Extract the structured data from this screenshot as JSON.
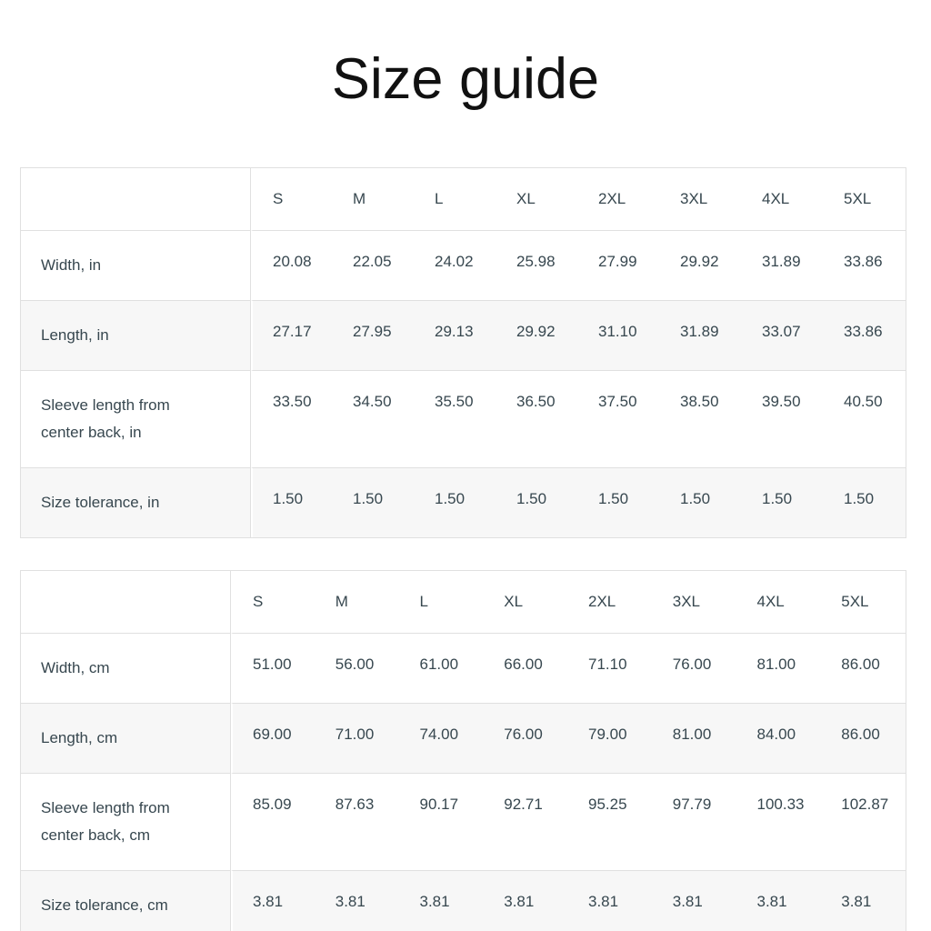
{
  "page": {
    "title": "Size guide"
  },
  "colors": {
    "text": "#37474f",
    "title": "#111111",
    "border": "#e0e0e0",
    "alt_row_background": "#f7f7f7",
    "background": "#ffffff"
  },
  "tables": [
    {
      "name": "size-table-inches",
      "unit": "in",
      "columns": [
        "S",
        "M",
        "L",
        "XL",
        "2XL",
        "3XL",
        "4XL",
        "5XL"
      ],
      "rows": [
        {
          "label": "Width, in",
          "values": [
            "20.08",
            "22.05",
            "24.02",
            "25.98",
            "27.99",
            "29.92",
            "31.89",
            "33.86"
          ]
        },
        {
          "label": "Length, in",
          "values": [
            "27.17",
            "27.95",
            "29.13",
            "29.92",
            "31.10",
            "31.89",
            "33.07",
            "33.86"
          ]
        },
        {
          "label": "Sleeve length from center back, in",
          "values": [
            "33.50",
            "34.50",
            "35.50",
            "36.50",
            "37.50",
            "38.50",
            "39.50",
            "40.50"
          ]
        },
        {
          "label": "Size tolerance, in",
          "values": [
            "1.50",
            "1.50",
            "1.50",
            "1.50",
            "1.50",
            "1.50",
            "1.50",
            "1.50"
          ]
        }
      ]
    },
    {
      "name": "size-table-cm",
      "unit": "cm",
      "columns": [
        "S",
        "M",
        "L",
        "XL",
        "2XL",
        "3XL",
        "4XL",
        "5XL"
      ],
      "rows": [
        {
          "label": "Width, cm",
          "values": [
            "51.00",
            "56.00",
            "61.00",
            "66.00",
            "71.10",
            "76.00",
            "81.00",
            "86.00"
          ]
        },
        {
          "label": "Length, cm",
          "values": [
            "69.00",
            "71.00",
            "74.00",
            "76.00",
            "79.00",
            "81.00",
            "84.00",
            "86.00"
          ]
        },
        {
          "label": "Sleeve length from center back, cm",
          "values": [
            "85.09",
            "87.63",
            "90.17",
            "92.71",
            "95.25",
            "97.79",
            "100.33",
            "102.87"
          ]
        },
        {
          "label": "Size tolerance, cm",
          "values": [
            "3.81",
            "3.81",
            "3.81",
            "3.81",
            "3.81",
            "3.81",
            "3.81",
            "3.81"
          ]
        }
      ]
    }
  ]
}
